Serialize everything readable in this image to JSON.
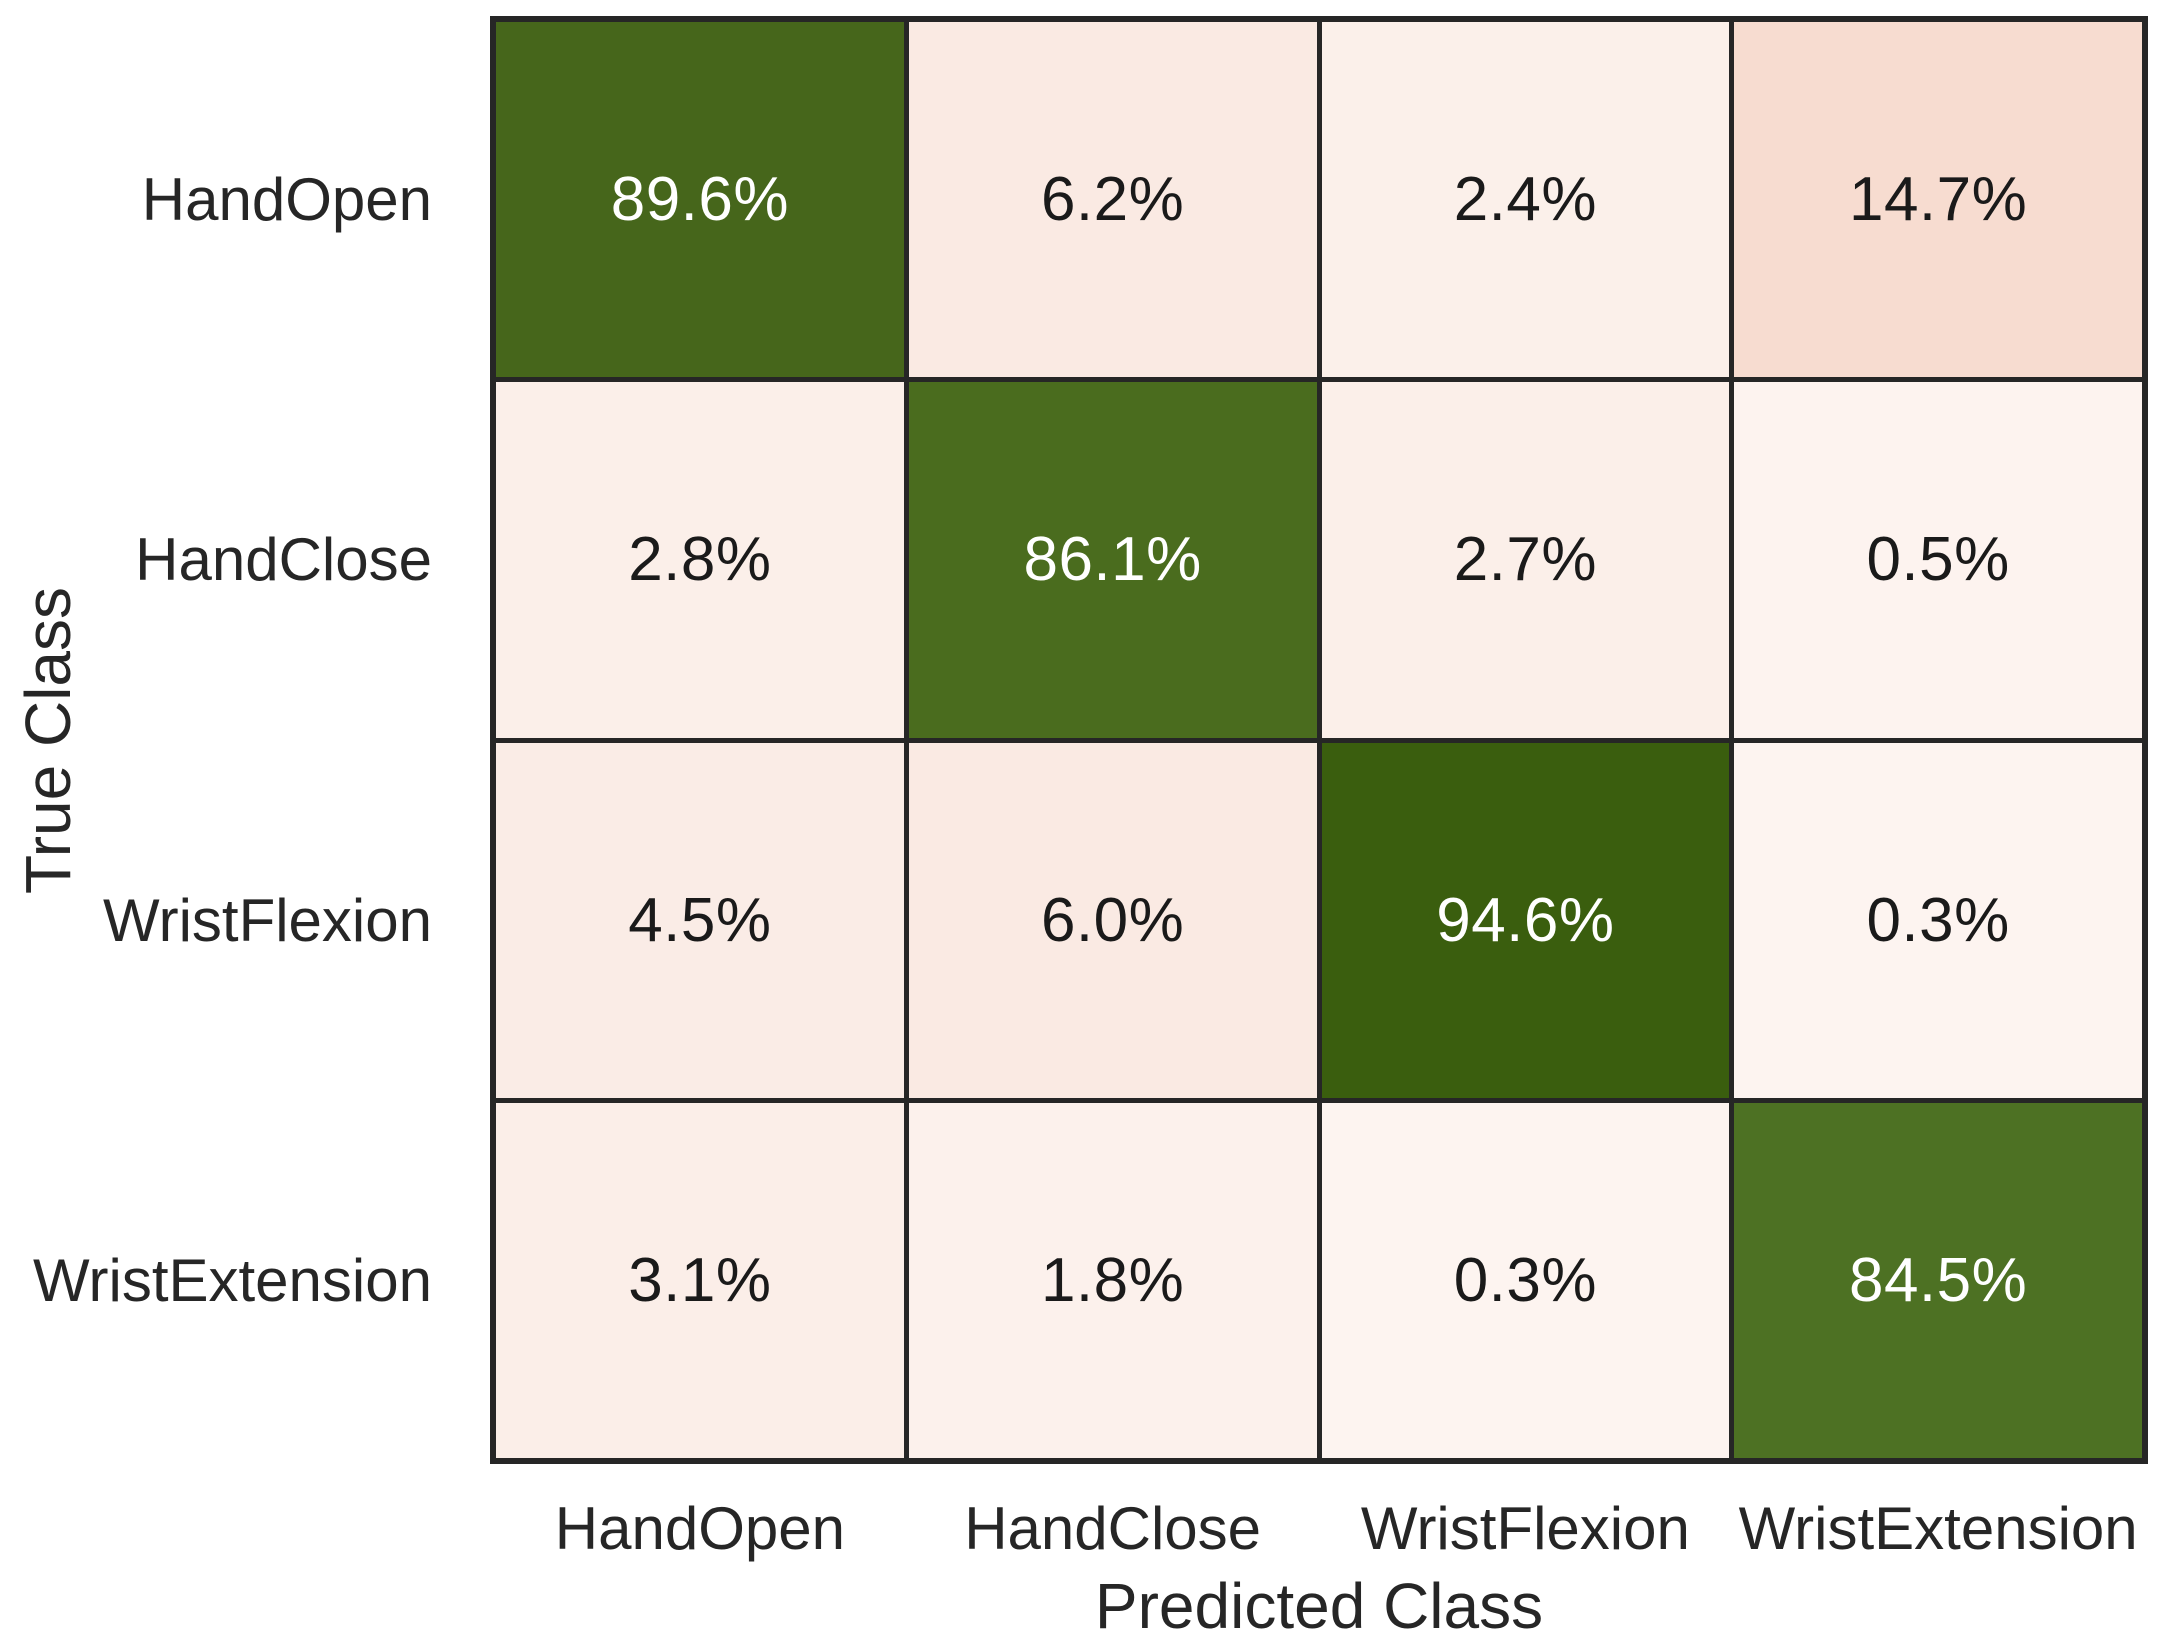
{
  "figure": {
    "background": "#ffffff"
  },
  "chart_data": {
    "type": "heatmap",
    "subtype": "confusion-matrix",
    "title": "",
    "xlabel": "Predicted Class",
    "ylabel": "True Class",
    "x_categories": [
      "HandOpen",
      "HandClose",
      "WristFlexion",
      "WristExtension"
    ],
    "y_categories": [
      "HandOpen",
      "HandClose",
      "WristFlexion",
      "WristExtension"
    ],
    "values": [
      [
        89.6,
        6.2,
        2.4,
        14.7
      ],
      [
        2.8,
        86.1,
        2.7,
        0.5
      ],
      [
        4.5,
        6.0,
        94.6,
        0.3
      ],
      [
        3.1,
        1.8,
        0.3,
        84.5
      ]
    ],
    "cell_labels": [
      [
        "89.6%",
        "6.2%",
        "2.4%",
        "14.7%"
      ],
      [
        "2.8%",
        "86.1%",
        "2.7%",
        "0.5%"
      ],
      [
        "4.5%",
        "6.0%",
        "94.6%",
        "0.3%"
      ],
      [
        "3.1%",
        "1.8%",
        "0.3%",
        "84.5%"
      ]
    ],
    "cell_colors": [
      [
        "#46661b",
        "#faeae3",
        "#fbf0ea",
        "#f7dcd0"
      ],
      [
        "#fbefe9",
        "#4a6c1e",
        "#fbefe9",
        "#fdf3ef"
      ],
      [
        "#faece6",
        "#faeae3",
        "#3a5e0e",
        "#fdf4f0"
      ],
      [
        "#fbeee8",
        "#fcf1ec",
        "#fdf4f0",
        "#4d7123"
      ]
    ],
    "value_unit": "%",
    "grid_on": true,
    "legend": null,
    "style": {
      "grid_line_color": "#262626",
      "diagonal_text_color": "#ffffff",
      "off_diagonal_text_color": "#1a1a1a",
      "tick_label_color": "#262626",
      "axis_title_color": "#262626",
      "diagonal_color_dark": "#3a5e0e",
      "diagonal_color_light": "#4d7123",
      "off_diagonal_color_strong": "#f7dcd0",
      "off_diagonal_color_faint": "#fdf4f0"
    }
  }
}
